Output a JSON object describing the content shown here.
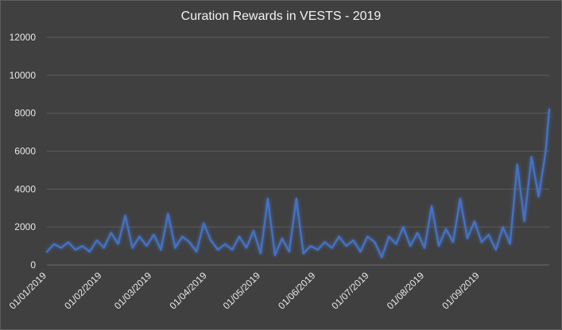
{
  "chart_data": {
    "type": "line",
    "title": "Curation Rewards in VESTS - 2019",
    "xlabel": "",
    "ylabel": "",
    "ylim": [
      0,
      12000
    ],
    "yticks": [
      0,
      2000,
      4000,
      6000,
      8000,
      10000,
      12000
    ],
    "yticklabels": [
      "0",
      "2000",
      "4000",
      "6000",
      "8000",
      "10000",
      "12000"
    ],
    "xlim": [
      "01/01/2019",
      "10/10/2019"
    ],
    "xticks": [
      "01/01/2019",
      "01/02/2019",
      "01/03/2019",
      "01/04/2019",
      "01/05/2019",
      "01/06/2019",
      "01/07/2019",
      "01/08/2019",
      "01/09/2019"
    ],
    "grid": true,
    "legend": "none",
    "series_color": "#4472c4",
    "series": [
      {
        "x": [
          "01/01/2019",
          "05/01/2019",
          "09/01/2019",
          "13/01/2019",
          "17/01/2019",
          "21/01/2019",
          "25/01/2019",
          "29/01/2019",
          "02/02/2019",
          "06/02/2019",
          "10/02/2019",
          "14/02/2019",
          "18/02/2019",
          "22/02/2019",
          "26/02/2019",
          "02/03/2019",
          "06/03/2019",
          "10/03/2019",
          "14/03/2019",
          "18/03/2019",
          "22/03/2019",
          "26/03/2019",
          "30/03/2019",
          "03/04/2019",
          "07/04/2019",
          "11/04/2019",
          "15/04/2019",
          "19/04/2019",
          "23/04/2019",
          "27/04/2019",
          "01/05/2019",
          "05/05/2019",
          "09/05/2019",
          "13/05/2019",
          "17/05/2019",
          "21/05/2019",
          "25/05/2019",
          "29/05/2019",
          "02/06/2019",
          "06/06/2019",
          "10/06/2019",
          "14/06/2019",
          "18/06/2019",
          "22/06/2019",
          "26/06/2019",
          "30/06/2019",
          "04/07/2019",
          "08/07/2019",
          "12/07/2019",
          "16/07/2019",
          "20/07/2019",
          "24/07/2019",
          "28/07/2019",
          "01/08/2019",
          "05/08/2019",
          "09/08/2019",
          "13/08/2019",
          "17/08/2019",
          "21/08/2019",
          "25/08/2019",
          "29/08/2019",
          "02/09/2019",
          "06/09/2019",
          "10/09/2019",
          "14/09/2019",
          "18/09/2019",
          "22/09/2019",
          "26/09/2019",
          "30/09/2019",
          "04/10/2019",
          "08/10/2019",
          "10/10/2019"
        ],
        "values": [
          700,
          1100,
          900,
          1200,
          800,
          1000,
          700,
          1300,
          900,
          1700,
          1100,
          2600,
          900,
          1500,
          1000,
          1600,
          800,
          2700,
          900,
          1500,
          1200,
          700,
          2200,
          1300,
          800,
          1100,
          800,
          1500,
          900,
          1800,
          600,
          3500,
          500,
          1400,
          700,
          3500,
          600,
          1000,
          800,
          1200,
          900,
          1500,
          1000,
          1300,
          700,
          1500,
          1200,
          400,
          1500,
          1100,
          2000,
          1000,
          1700,
          900,
          3100,
          1000,
          1900,
          1200,
          3500,
          1400,
          2300,
          1200,
          1600,
          800,
          2000,
          1100,
          5300,
          2300,
          5700,
          3600,
          6000,
          8200
        ]
      }
    ]
  }
}
